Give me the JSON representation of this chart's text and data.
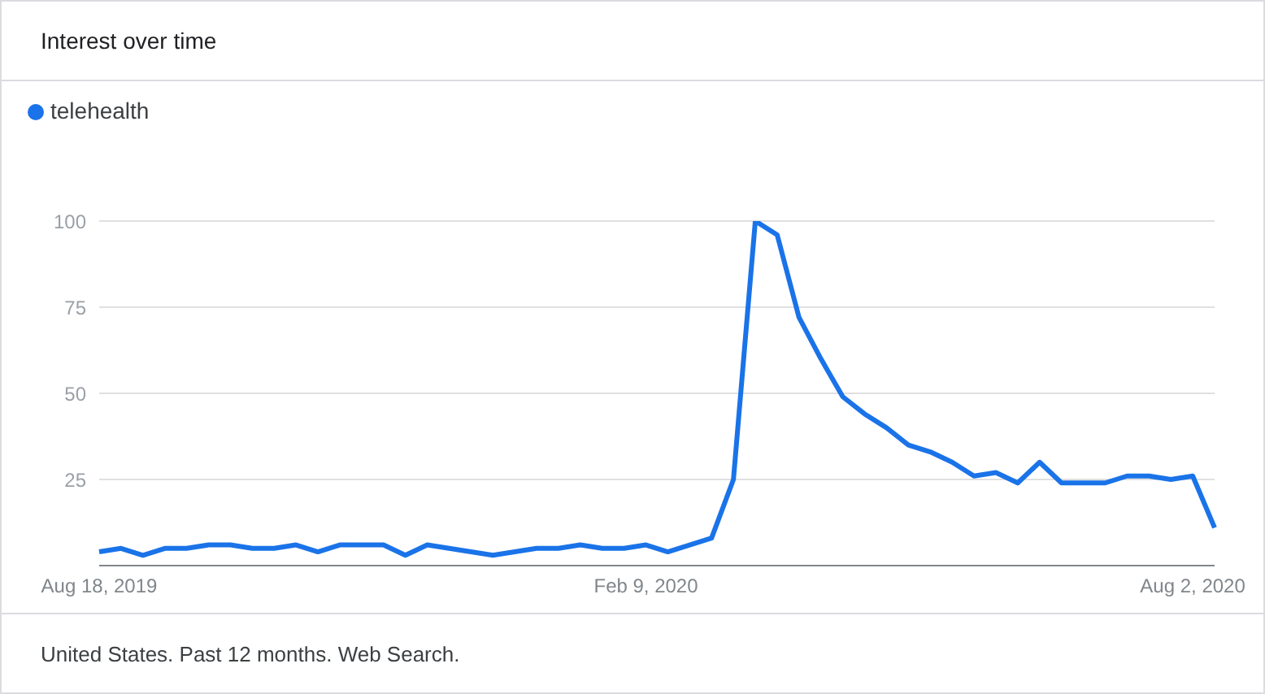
{
  "chart_data": {
    "type": "line",
    "title": "Interest over time",
    "categories": [
      "Aug 18, 2019",
      null,
      null,
      null,
      null,
      null,
      null,
      null,
      null,
      null,
      null,
      null,
      null,
      null,
      null,
      null,
      null,
      null,
      null,
      null,
      null,
      null,
      null,
      null,
      null,
      "Feb 9, 2020",
      null,
      null,
      null,
      null,
      null,
      null,
      null,
      null,
      null,
      null,
      null,
      null,
      null,
      null,
      null,
      null,
      null,
      null,
      null,
      null,
      null,
      null,
      null,
      null,
      "Aug 2, 2020",
      null
    ],
    "series": [
      {
        "name": "telehealth",
        "color": "#1a73e8",
        "values": [
          4,
          5,
          3,
          5,
          5,
          6,
          6,
          5,
          5,
          6,
          4,
          6,
          6,
          6,
          3,
          6,
          5,
          4,
          3,
          4,
          5,
          5,
          6,
          5,
          5,
          6,
          4,
          6,
          8,
          25,
          100,
          96,
          72,
          60,
          49,
          44,
          40,
          35,
          33,
          30,
          26,
          27,
          24,
          30,
          24,
          24,
          24,
          26,
          26,
          25,
          26,
          11
        ]
      }
    ],
    "ylim": [
      0,
      100
    ],
    "yticks": [
      25,
      50,
      75,
      100
    ],
    "grid": "y",
    "legend": "top left",
    "marker": "none",
    "line_style": "solid",
    "annotations": [
      "United States. Past 12 months. Web Search."
    ]
  }
}
